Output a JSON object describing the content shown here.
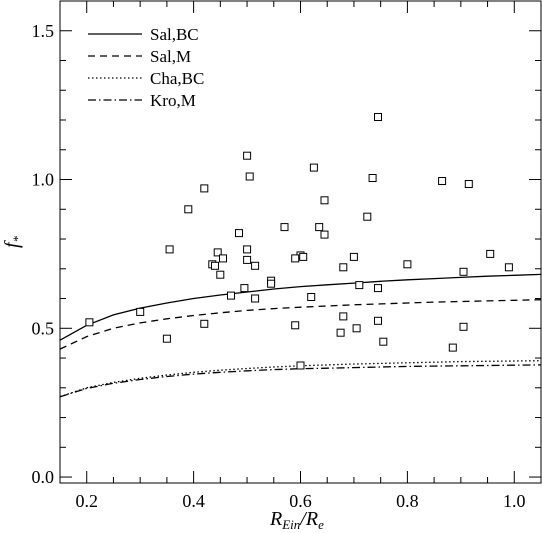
{
  "chart_data": {
    "type": "scatter",
    "title": "",
    "xlabel": {
      "main": "R",
      "sub1": "Ein",
      "slash": "/R",
      "sub2": "e"
    },
    "ylabel": {
      "main": "f",
      "sub": "*"
    },
    "xlim": [
      0.15,
      1.05
    ],
    "ylim": [
      -0.02,
      1.6
    ],
    "xticks": [
      0.2,
      0.4,
      0.6,
      0.8,
      1.0
    ],
    "xtick_labels": [
      "0.2",
      "0.4",
      "0.6",
      "0.8",
      "1.0"
    ],
    "xminor": [
      0.25,
      0.3,
      0.35,
      0.45,
      0.5,
      0.55,
      0.65,
      0.7,
      0.75,
      0.85,
      0.9,
      0.95,
      1.05
    ],
    "yticks": [
      0.0,
      0.5,
      1.0,
      1.5
    ],
    "ytick_labels": [
      "0.0",
      "0.5",
      "1.0",
      "1.5"
    ],
    "yminor": [
      0.1,
      0.2,
      0.3,
      0.4,
      0.6,
      0.7,
      0.8,
      0.9,
      1.1,
      1.2,
      1.3,
      1.4,
      1.6
    ],
    "legend_position": "top-left",
    "series": [
      {
        "name": "Sal,BC",
        "style": "solid",
        "x": [
          0.15,
          0.2,
          0.25,
          0.3,
          0.35,
          0.4,
          0.45,
          0.5,
          0.55,
          0.6,
          0.65,
          0.7,
          0.75,
          0.8,
          0.85,
          0.9,
          0.95,
          1.0,
          1.05
        ],
        "y": [
          0.46,
          0.51,
          0.545,
          0.568,
          0.585,
          0.6,
          0.612,
          0.622,
          0.632,
          0.64,
          0.646,
          0.652,
          0.658,
          0.663,
          0.667,
          0.671,
          0.675,
          0.678,
          0.681
        ]
      },
      {
        "name": "Sal,M",
        "style": "dashed",
        "x": [
          0.15,
          0.2,
          0.25,
          0.3,
          0.35,
          0.4,
          0.45,
          0.5,
          0.55,
          0.6,
          0.65,
          0.7,
          0.75,
          0.8,
          0.85,
          0.9,
          0.95,
          1.0,
          1.05
        ],
        "y": [
          0.43,
          0.472,
          0.5,
          0.518,
          0.532,
          0.543,
          0.552,
          0.56,
          0.566,
          0.571,
          0.575,
          0.579,
          0.582,
          0.585,
          0.588,
          0.59,
          0.592,
          0.594,
          0.596
        ]
      },
      {
        "name": "Cha,BC",
        "style": "dotted",
        "x": [
          0.15,
          0.2,
          0.25,
          0.3,
          0.35,
          0.4,
          0.45,
          0.5,
          0.55,
          0.6,
          0.65,
          0.7,
          0.75,
          0.8,
          0.85,
          0.9,
          0.95,
          1.0,
          1.05
        ],
        "y": [
          0.27,
          0.3,
          0.318,
          0.332,
          0.343,
          0.352,
          0.359,
          0.365,
          0.37,
          0.374,
          0.377,
          0.38,
          0.382,
          0.384,
          0.386,
          0.388,
          0.389,
          0.39,
          0.391
        ]
      },
      {
        "name": "Kro,M",
        "style": "dashdot",
        "x": [
          0.15,
          0.2,
          0.25,
          0.3,
          0.35,
          0.4,
          0.45,
          0.5,
          0.55,
          0.6,
          0.65,
          0.7,
          0.75,
          0.8,
          0.85,
          0.9,
          0.95,
          1.0,
          1.05
        ],
        "y": [
          0.27,
          0.298,
          0.315,
          0.328,
          0.338,
          0.346,
          0.352,
          0.357,
          0.361,
          0.364,
          0.366,
          0.368,
          0.37,
          0.372,
          0.373,
          0.374,
          0.375,
          0.376,
          0.377
        ]
      }
    ],
    "points": {
      "x": [
        0.745,
        0.5,
        0.625,
        0.735,
        0.865,
        0.915,
        0.42,
        0.505,
        0.39,
        0.645,
        0.725,
        0.635,
        0.57,
        0.485,
        0.645,
        0.355,
        0.5,
        0.445,
        0.955,
        0.6,
        0.59,
        0.605,
        0.5,
        0.7,
        0.455,
        0.435,
        0.44,
        0.515,
        0.68,
        0.905,
        0.99,
        0.8,
        0.45,
        0.545,
        0.545,
        0.495,
        0.745,
        0.71,
        0.47,
        0.515,
        0.62,
        0.3,
        0.205,
        0.68,
        0.59,
        0.745,
        0.42,
        0.705,
        0.675,
        0.905,
        0.35,
        0.755,
        0.885,
        0.6
      ],
      "y": [
        1.21,
        1.08,
        1.04,
        1.005,
        0.995,
        0.985,
        0.97,
        1.01,
        0.9,
        0.93,
        0.875,
        0.84,
        0.84,
        0.82,
        0.815,
        0.765,
        0.765,
        0.755,
        0.75,
        0.745,
        0.735,
        0.74,
        0.73,
        0.74,
        0.735,
        0.715,
        0.71,
        0.71,
        0.705,
        0.69,
        0.705,
        0.715,
        0.68,
        0.66,
        0.65,
        0.635,
        0.635,
        0.645,
        0.61,
        0.6,
        0.605,
        0.555,
        0.52,
        0.54,
        0.51,
        0.525,
        0.515,
        0.5,
        0.485,
        0.505,
        0.465,
        0.455,
        0.435,
        0.375
      ]
    }
  }
}
